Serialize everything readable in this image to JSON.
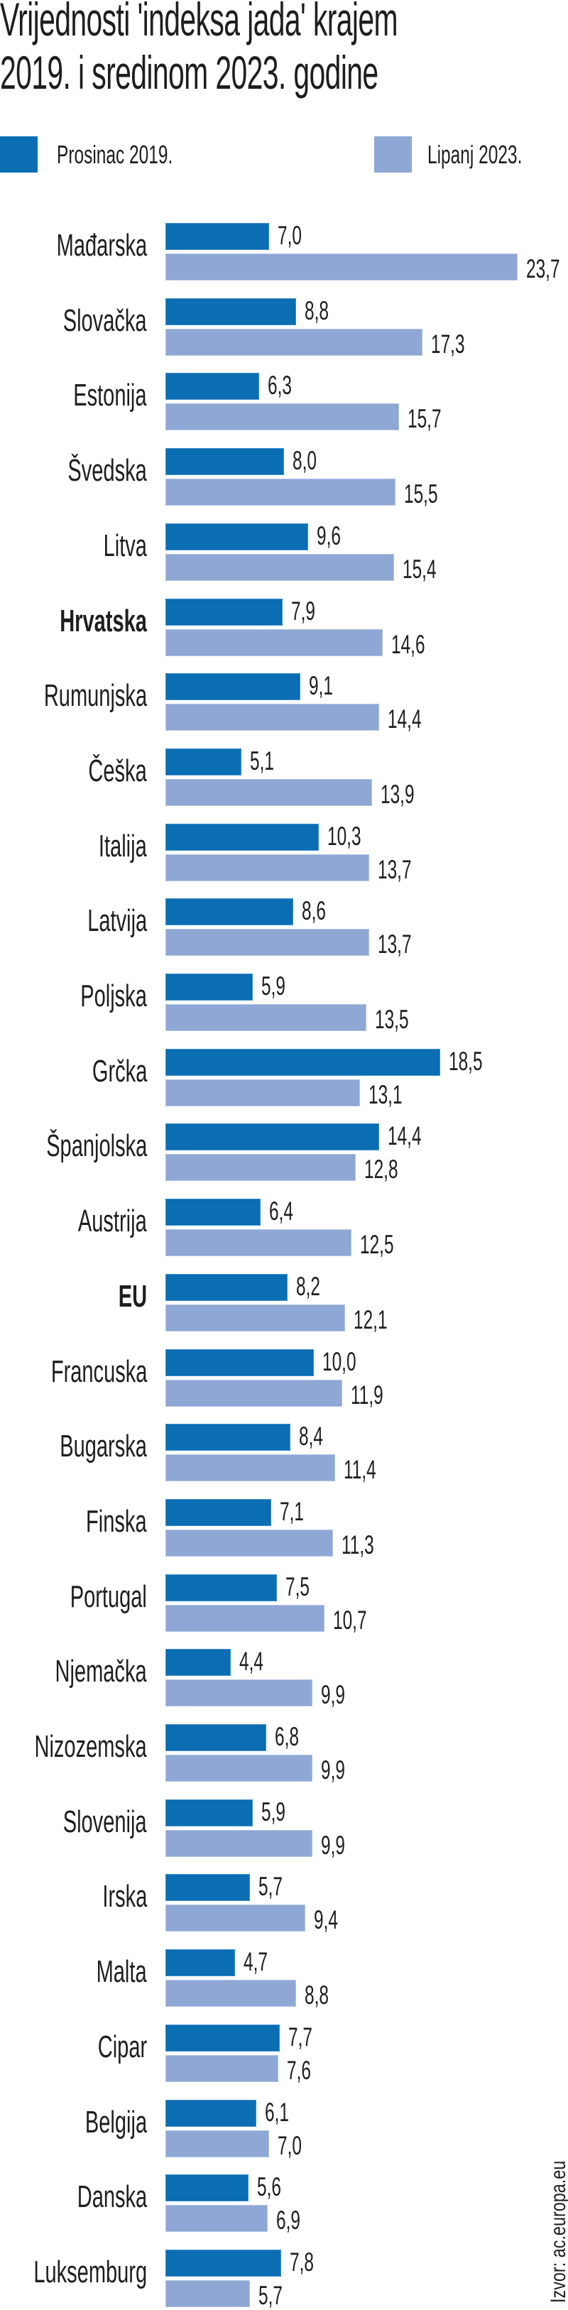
{
  "title_lines": [
    "Vrijednosti 'indeksa jada' krajem",
    "2019. i sredinom 2023. godine"
  ],
  "legend": [
    {
      "label": "Prosinac 2019.",
      "color": "#0b6db2"
    },
    {
      "label": "Lipanj 2023.",
      "color": "#8ea7d4"
    }
  ],
  "source": "Izvor: ac.europa.eu",
  "chart_data": {
    "type": "bar",
    "orientation": "horizontal",
    "title": "Vrijednosti 'indeksa jada' krajem 2019. i sredinom 2023. godine",
    "xlabel": "",
    "ylabel": "",
    "xlim": [
      0,
      23.7
    ],
    "grid": false,
    "legend_position": "top",
    "highlighted_categories": [
      "Hrvatska",
      "EU"
    ],
    "categories": [
      "Mađarska",
      "Slovačka",
      "Estonija",
      "Švedska",
      "Litva",
      "Hrvatska",
      "Rumunjska",
      "Češka",
      "Italija",
      "Latvija",
      "Poljska",
      "Grčka",
      "Španjolska",
      "Austrija",
      "EU",
      "Francuska",
      "Bugarska",
      "Finska",
      "Portugal",
      "Njemačka",
      "Nizozemska",
      "Slovenija",
      "Irska",
      "Malta",
      "Cipar",
      "Belgija",
      "Danska",
      "Luksemburg"
    ],
    "series": [
      {
        "name": "Prosinac 2019.",
        "values": [
          7.0,
          8.8,
          6.3,
          8.0,
          9.6,
          7.9,
          9.1,
          5.1,
          10.3,
          8.6,
          5.9,
          18.5,
          14.4,
          6.4,
          8.2,
          10.0,
          8.4,
          7.1,
          7.5,
          4.4,
          6.8,
          5.9,
          5.7,
          4.7,
          7.7,
          6.1,
          5.6,
          7.8
        ],
        "labels": [
          "7,0",
          "8,8",
          "6,3",
          "8,0",
          "9,6",
          "7,9",
          "9,1",
          "5,1",
          "10,3",
          "8,6",
          "5,9",
          "18,5",
          "14,4",
          "6,4",
          "8,2",
          "10,0",
          "8,4",
          "7,1",
          "7,5",
          "4,4",
          "6,8",
          "5,9",
          "5,7",
          "4,7",
          "7,7",
          "6,1",
          "5,6",
          "7,8"
        ]
      },
      {
        "name": "Lipanj 2023.",
        "values": [
          23.7,
          17.3,
          15.7,
          15.5,
          15.4,
          14.6,
          14.4,
          13.9,
          13.7,
          13.7,
          13.5,
          13.1,
          12.8,
          12.5,
          12.1,
          11.9,
          11.4,
          11.3,
          10.7,
          9.9,
          9.9,
          9.9,
          9.4,
          8.8,
          7.6,
          7.0,
          6.9,
          5.7
        ],
        "labels": [
          "23,7",
          "17,3",
          "15,7",
          "15,5",
          "15,4",
          "14,6",
          "14,4",
          "13,9",
          "13,7",
          "13,7",
          "13,5",
          "13,1",
          "12,8",
          "12,5",
          "12,1",
          "11,9",
          "11,4",
          "11,3",
          "10,7",
          "9,9",
          "9,9",
          "9,9",
          "9,4",
          "8,8",
          "7,6",
          "7,0",
          "6,9",
          "5,7"
        ]
      }
    ]
  }
}
